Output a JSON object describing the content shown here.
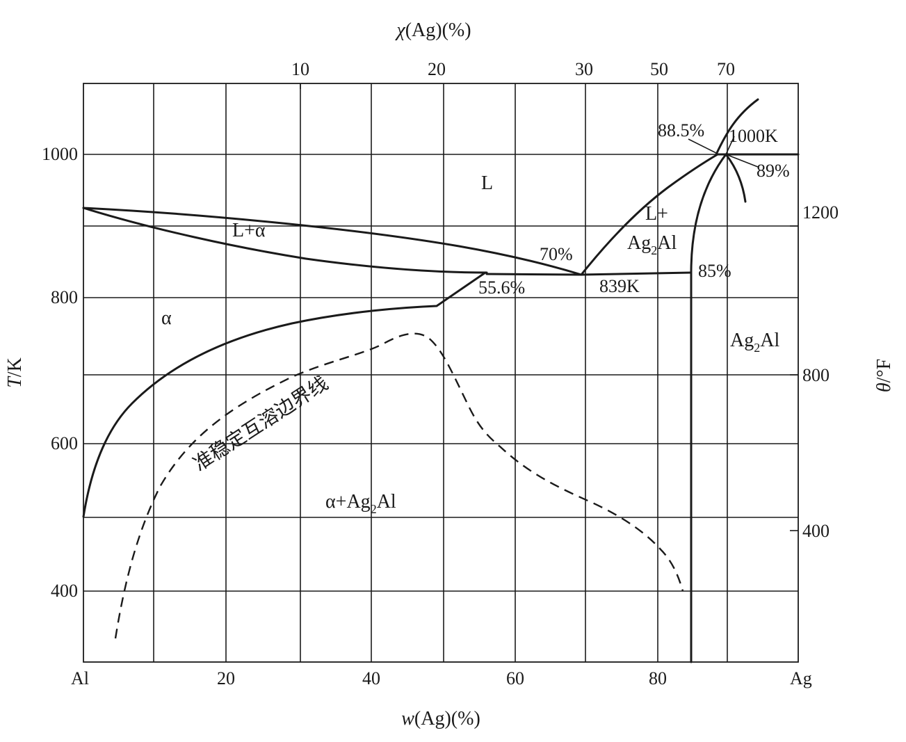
{
  "axes": {
    "bottom_title_var": "w",
    "bottom_title_rest": "(Ag)(%)",
    "top_title_var": "χ",
    "top_title_rest": "(Ag)(%)",
    "left_title_var": "T",
    "left_title_rest": "/K",
    "right_title_var": "θ",
    "right_title_rest": "/°F",
    "bottom_ticks": [
      "Al",
      "20",
      "40",
      "60",
      "80",
      "Ag"
    ],
    "top_ticks": [
      "10",
      "20",
      "30",
      "50",
      "70"
    ],
    "left_ticks": [
      "400",
      "600",
      "800",
      "1000"
    ],
    "right_ticks": [
      "400",
      "800",
      "1200"
    ]
  },
  "regions": {
    "liquid": "L",
    "l_alpha": "L+α",
    "alpha": "α",
    "l_ag2al_line1": "L+",
    "l_ag2al_line2_base": "Ag",
    "l_ag2al_line2_sub": "2",
    "l_ag2al_line2_end": "Al",
    "ag2al_base": "Ag",
    "ag2al_sub": "2",
    "ag2al_end": "Al",
    "alpha_ag2al_base": "α+Ag",
    "alpha_ag2al_sub": "2",
    "alpha_ag2al_end": "Al"
  },
  "annotations": {
    "p70": "70%",
    "p55_6": "55.6%",
    "t839": "839K",
    "p85": "85%",
    "p88_5": "88.5%",
    "t1000": "1000K",
    "p89": "89%"
  },
  "metastable_label": "准稳定互溶边界线",
  "chart_data": {
    "type": "phase_diagram",
    "x_axis": {
      "label": "w(Ag)(%)",
      "range": [
        0,
        100
      ],
      "ticks": [
        0,
        20,
        40,
        60,
        80,
        100
      ]
    },
    "y_axis": {
      "label": "T/K",
      "range": [
        300,
        1100
      ],
      "ticks": [
        400,
        600,
        800,
        1000
      ]
    },
    "secondary_x_axis": {
      "label": "χ(Ag)(%)",
      "ticks": [
        10,
        20,
        30,
        50,
        70
      ]
    },
    "secondary_y_axis": {
      "label": "θ/°F",
      "ticks": [
        400,
        800,
        1200
      ]
    },
    "invariants": [
      {
        "type": "eutectic",
        "T": 839,
        "w_Ag": 70,
        "phases_w": [
          55.6,
          70,
          85
        ]
      },
      {
        "type": "peritectic",
        "T": 1000,
        "w_Ag": [
          88.5,
          89
        ]
      }
    ],
    "regions": [
      "L",
      "L+α",
      "α",
      "L+Ag2Al",
      "Ag2Al",
      "α+Ag2Al"
    ],
    "curves": [
      {
        "name": "liquidus_al_side",
        "points": [
          [
            0,
            933
          ],
          [
            20,
            912
          ],
          [
            40,
            893
          ],
          [
            55,
            871
          ],
          [
            69,
            839
          ]
        ]
      },
      {
        "name": "solidus_al_side",
        "points": [
          [
            0,
            933
          ],
          [
            10,
            898
          ],
          [
            20,
            880
          ],
          [
            30,
            864
          ],
          [
            40,
            853
          ],
          [
            55.6,
            839
          ]
        ]
      },
      {
        "name": "eutectic_isotherm",
        "points": [
          [
            55.6,
            839
          ],
          [
            85,
            840
          ]
        ]
      },
      {
        "name": "alpha_solvus",
        "points": [
          [
            0,
            500
          ],
          [
            2,
            580
          ],
          [
            5,
            640
          ],
          [
            10,
            685
          ],
          [
            20,
            742
          ],
          [
            30,
            766
          ],
          [
            40,
            780
          ],
          [
            49.6,
            788
          ],
          [
            55.6,
            839
          ]
        ]
      },
      {
        "name": "liquidus_ag2al",
        "points": [
          [
            69,
            839
          ],
          [
            80,
            947
          ],
          [
            88.5,
            1000
          ]
        ]
      },
      {
        "name": "ag2al_left_boundary",
        "points": [
          [
            85,
            300
          ],
          [
            85,
            840
          ],
          [
            89,
            1000
          ]
        ]
      },
      {
        "name": "peritectic_isotherm",
        "points": [
          [
            89,
            1000
          ],
          [
            100,
            1000
          ]
        ]
      },
      {
        "name": "liquidus_ag_side",
        "points": [
          [
            89,
            1000
          ],
          [
            94,
            1078
          ]
        ]
      },
      {
        "name": "ag2al_right_boundary",
        "points": [
          [
            89,
            1000
          ],
          [
            92,
            933
          ]
        ]
      },
      {
        "name": "metastable_miscibility_boundary",
        "style": "dashed",
        "points": [
          [
            4.5,
            336
          ],
          [
            8,
            470
          ],
          [
            12,
            580
          ],
          [
            20,
            650
          ],
          [
            30,
            700
          ],
          [
            40,
            730
          ],
          [
            46.5,
            755
          ],
          [
            50,
            720
          ],
          [
            57,
            600
          ],
          [
            65,
            550
          ],
          [
            72,
            500
          ],
          [
            80,
            450
          ],
          [
            84,
            400
          ]
        ]
      }
    ]
  }
}
